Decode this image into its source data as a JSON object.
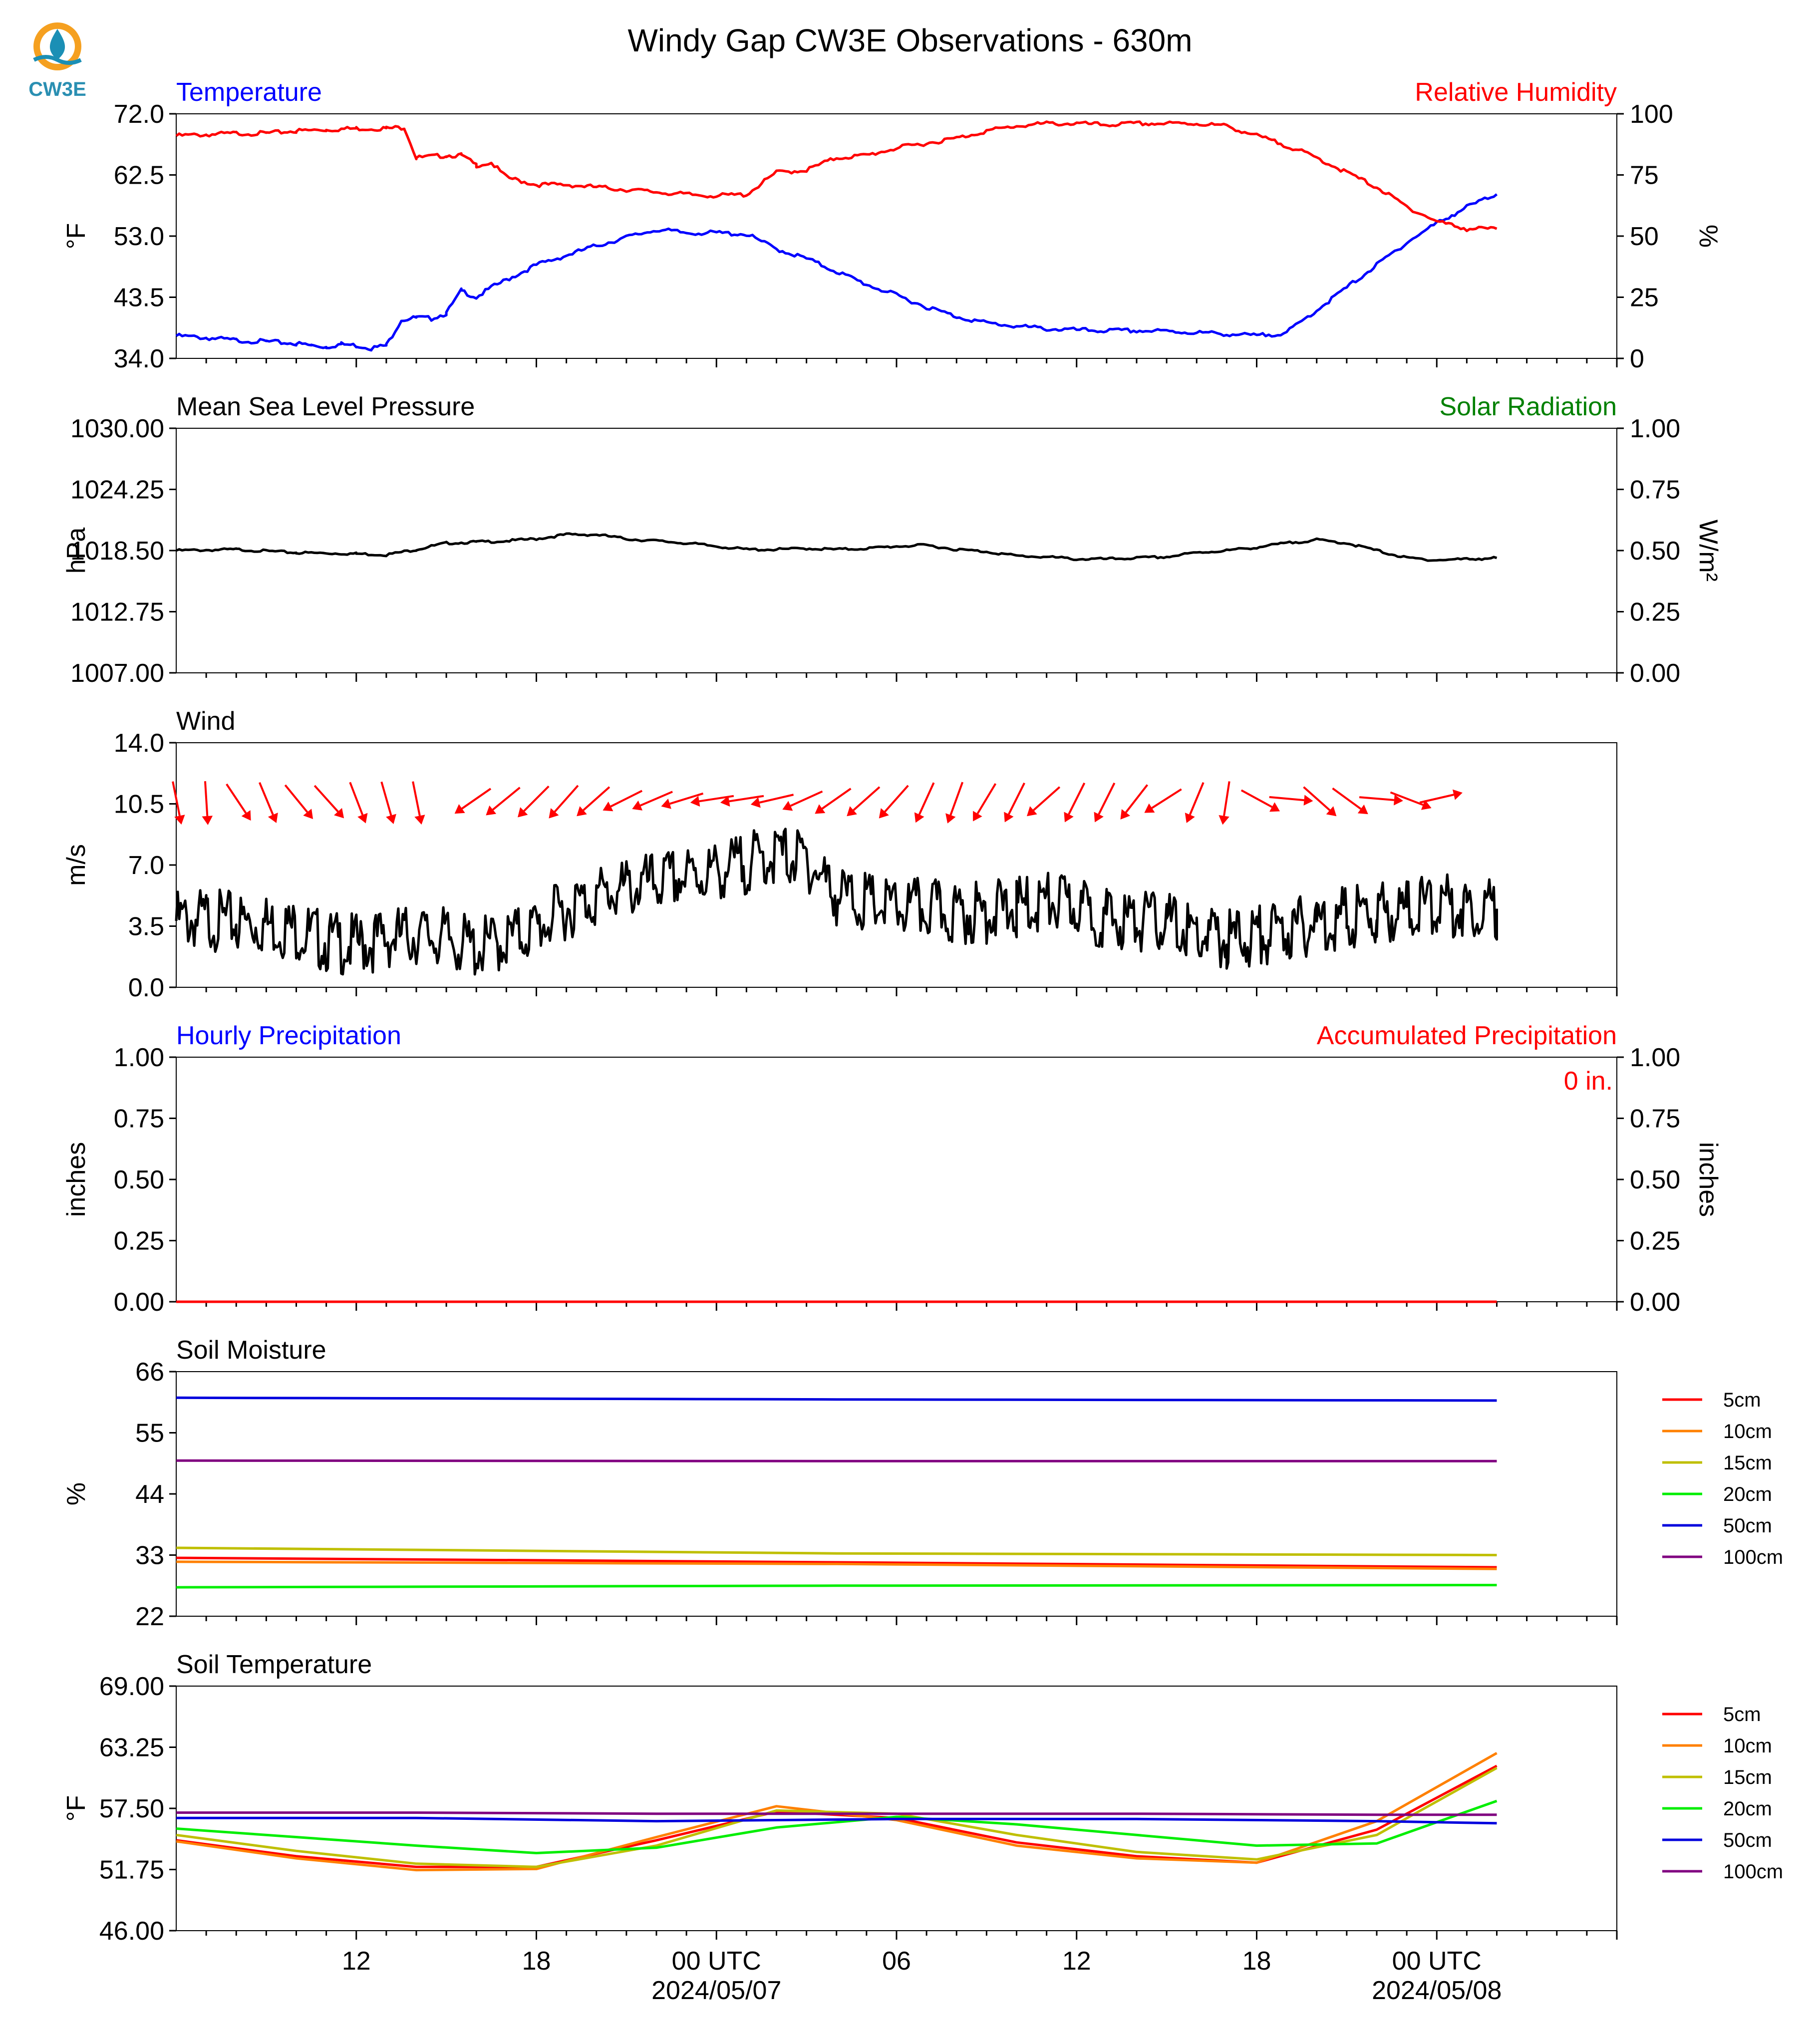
{
  "title": "Windy Gap CW3E Observations - 630m",
  "logo_text": "CW3E",
  "x_axis": {
    "start_hour": 6,
    "end_hour": 54,
    "major_ticks": [
      {
        "hour": 12,
        "label": "12"
      },
      {
        "hour": 18,
        "label": "18"
      },
      {
        "hour": 24,
        "label": "00 UTC"
      },
      {
        "hour": 30,
        "label": "06"
      },
      {
        "hour": 36,
        "label": "12"
      },
      {
        "hour": 42,
        "label": "18"
      },
      {
        "hour": 48,
        "label": "00 UTC"
      }
    ],
    "date_labels": [
      {
        "hour": 24,
        "label": "2024/05/07"
      },
      {
        "hour": 48,
        "label": "2024/05/08"
      }
    ]
  },
  "colors": {
    "temperature": "#0000ff",
    "humidity": "#ff0000",
    "pressure": "#000000",
    "solar": "#008000",
    "wind": "#000000",
    "wind_barbs": "#ff0000",
    "hourly_precip": "#0000ff",
    "accum_precip": "#ff0000"
  },
  "chart_data": [
    {
      "type": "line",
      "panel": "temperature_humidity",
      "title_left": "Temperature",
      "title_right": "Relative Humidity",
      "ylabel_left": "°F",
      "ylabel_right": "%",
      "ylim_left": [
        34.0,
        72.0
      ],
      "ylim_right": [
        0,
        100
      ],
      "yticks_left": [
        "34.0",
        "43.5",
        "53.0",
        "62.5",
        "72.0"
      ],
      "yticks_right": [
        "0",
        "25",
        "50",
        "75",
        "100"
      ],
      "series": [
        {
          "name": "Temperature",
          "axis": "left",
          "color": "#0000ff",
          "x": [
            6,
            7,
            8,
            9,
            10,
            10.5,
            11,
            11.5,
            12,
            12.5,
            13,
            13.5,
            14,
            14.5,
            15,
            15.5,
            16,
            16.5,
            17,
            18,
            19,
            20,
            21,
            22,
            23,
            24,
            25,
            26,
            27,
            28,
            29,
            30,
            31,
            32,
            33,
            34,
            35,
            36,
            37,
            38,
            39,
            40,
            41,
            42,
            43,
            44,
            45,
            46,
            47,
            48,
            49,
            50
          ],
          "y": [
            37.5,
            37.2,
            36.8,
            36.6,
            36.3,
            36.0,
            35.8,
            36.2,
            36.0,
            35.6,
            36.0,
            40.0,
            40.3,
            40.2,
            41.0,
            44.5,
            43.5,
            45.0,
            46.2,
            48.5,
            50.0,
            51.5,
            52.8,
            54.0,
            53.5,
            53.5,
            53.3,
            51.0,
            49.5,
            47.5,
            45.5,
            43.8,
            42.0,
            40.5,
            39.5,
            39.0,
            38.6,
            38.4,
            38.3,
            38.3,
            38.2,
            38.0,
            37.8,
            37.5,
            38.0,
            41.5,
            45.0,
            48.5,
            52.0,
            55.0,
            57.5,
            59.5
          ]
        },
        {
          "name": "Relative Humidity",
          "axis": "right",
          "color": "#ff0000",
          "x": [
            6,
            7,
            8,
            9,
            10,
            11,
            12,
            13,
            13.6,
            14,
            15,
            15.5,
            16,
            16.5,
            17,
            18,
            19,
            20,
            21,
            22,
            23,
            24,
            25,
            26,
            27,
            28,
            29,
            30,
            31,
            32,
            33,
            34,
            35,
            36,
            37,
            38,
            39,
            40,
            41,
            42,
            43,
            44,
            45,
            46,
            47,
            48,
            49,
            50
          ],
          "y": [
            91,
            91.5,
            92,
            92,
            93,
            93.5,
            94,
            94,
            94.5,
            82,
            83,
            83,
            79,
            80,
            74,
            71,
            71,
            70,
            69,
            68,
            67,
            66.5,
            67,
            76,
            77,
            82,
            83,
            86,
            88,
            90,
            93,
            95,
            96,
            96,
            95.5,
            96,
            96,
            96,
            95,
            91,
            87,
            82,
            76,
            70,
            62,
            56,
            53,
            53
          ]
        }
      ]
    },
    {
      "type": "line",
      "panel": "pressure_solar",
      "title_left": "Mean Sea Level Pressure",
      "title_right": "Solar Radiation",
      "ylabel_left": "hPa",
      "ylabel_right": "W/m²",
      "ylim_left": [
        1007.0,
        1030.0
      ],
      "ylim_right": [
        0.0,
        1.0
      ],
      "yticks_left": [
        "1007.00",
        "1012.75",
        "1018.50",
        "1024.25",
        "1030.00"
      ],
      "yticks_right": [
        "0.00",
        "0.25",
        "0.50",
        "0.75",
        "1.00"
      ],
      "series": [
        {
          "name": "Mean Sea Level Pressure",
          "axis": "left",
          "color": "#000000",
          "x": [
            6,
            8,
            10,
            12,
            13,
            14,
            15,
            16,
            17,
            18,
            19,
            20,
            21,
            22,
            23,
            24,
            25,
            26,
            27,
            28,
            29,
            30,
            31,
            32,
            33,
            34,
            35,
            36,
            37,
            38,
            39,
            40,
            41,
            42,
            43,
            44,
            45,
            46,
            47,
            48,
            49,
            50
          ],
          "y": [
            1018.5,
            1018.6,
            1018.3,
            1018.2,
            1018.1,
            1018.6,
            1019.2,
            1019.3,
            1019.4,
            1019.6,
            1020.0,
            1020.0,
            1019.6,
            1019.4,
            1019.2,
            1018.9,
            1018.6,
            1018.6,
            1018.7,
            1018.6,
            1018.7,
            1018.9,
            1019.0,
            1018.6,
            1018.4,
            1018.0,
            1017.9,
            1017.7,
            1017.7,
            1017.8,
            1017.9,
            1018.3,
            1018.5,
            1018.8,
            1019.2,
            1019.5,
            1019.2,
            1018.5,
            1017.8,
            1017.6,
            1017.7,
            1017.8
          ]
        }
      ]
    },
    {
      "type": "line",
      "panel": "wind",
      "title_left": "Wind",
      "ylabel_left": "m/s",
      "ylim_left": [
        0.0,
        14.0
      ],
      "yticks_left": [
        "0.0",
        "3.5",
        "7.0",
        "10.5",
        "14.0"
      ],
      "series": [
        {
          "name": "Wind speed",
          "axis": "left",
          "color": "#000000",
          "x": [
            6,
            7,
            8,
            9,
            10,
            11,
            12,
            13,
            14,
            15,
            16,
            17,
            18,
            19,
            20,
            21,
            22,
            23,
            24,
            25,
            26,
            27,
            28,
            29,
            30,
            31,
            32,
            33,
            34,
            35,
            36,
            37,
            38,
            39,
            40,
            41,
            42,
            43,
            44,
            45,
            46,
            47,
            48,
            49,
            50
          ],
          "y": [
            3.8,
            3.9,
            3.7,
            3.6,
            3.3,
            2.6,
            2.4,
            2.8,
            3.0,
            2.8,
            2.2,
            2.7,
            3.4,
            4.5,
            5.2,
            5.6,
            6.0,
            6.3,
            6.6,
            7.1,
            7.6,
            7.3,
            5.3,
            4.8,
            4.5,
            4.5,
            4.2,
            4.3,
            4.5,
            4.9,
            4.6,
            3.9,
            3.8,
            3.7,
            3.0,
            2.7,
            3.0,
            3.2,
            3.7,
            4.0,
            4.2,
            4.5,
            4.7,
            4.6,
            4.5
          ]
        },
        {
          "name": "Wind direction",
          "axis": "left",
          "color": "#ff0000",
          "x": [
            6,
            7,
            8,
            9,
            10,
            11,
            12,
            13,
            14,
            16,
            17,
            18,
            19,
            20,
            21,
            22,
            23,
            24,
            25,
            26,
            27,
            28,
            29,
            30,
            31,
            32,
            33,
            34,
            35,
            36,
            37,
            38,
            39,
            40,
            41,
            42,
            43,
            44,
            45,
            46,
            47,
            48
          ],
          "dx": [
            0.3,
            0.1,
            0.8,
            0.5,
            0.9,
            0.9,
            0.5,
            0.4,
            0.3,
            -1.3,
            -1.1,
            -0.9,
            -0.8,
            -0.9,
            -1.2,
            -1.4,
            -1.3,
            -1.3,
            -1.3,
            -1.3,
            -1.1,
            -1.0,
            -0.9,
            -0.8,
            -0.5,
            -0.4,
            -0.6,
            -0.5,
            -0.9,
            -0.5,
            -0.5,
            -0.7,
            -1.1,
            -0.5,
            -0.2,
            1.1,
            1.1,
            0.9,
            1.1,
            1.2,
            1.3,
            1.3
          ],
          "dy": [
            -1.5,
            -1.6,
            -1.2,
            -1.2,
            -1.1,
            -1.0,
            -1.3,
            -1.4,
            -1.5,
            -0.9,
            -0.9,
            -0.9,
            -0.9,
            -0.8,
            -0.6,
            -0.6,
            -0.4,
            -0.2,
            -0.2,
            -0.3,
            -0.5,
            -0.7,
            -0.8,
            -0.9,
            -1.1,
            -1.1,
            -1.0,
            -1.0,
            -0.8,
            -1.0,
            -1.0,
            -0.9,
            -0.7,
            -1.2,
            -1.3,
            -0.6,
            -0.1,
            -0.8,
            -0.8,
            -0.1,
            -0.5,
            0.3
          ]
        }
      ]
    },
    {
      "type": "line",
      "panel": "precipitation",
      "title_left": "Hourly Precipitation",
      "title_right": "Accumulated Precipitation",
      "annotation": "0 in.",
      "ylabel_left": "inches",
      "ylabel_right": "inches",
      "ylim_left": [
        0.0,
        1.0
      ],
      "ylim_right": [
        0.0,
        1.0
      ],
      "yticks_left": [
        "0.00",
        "0.25",
        "0.50",
        "0.75",
        "1.00"
      ],
      "yticks_right": [
        "0.00",
        "0.25",
        "0.50",
        "0.75",
        "1.00"
      ],
      "series": [
        {
          "name": "Hourly Precipitation",
          "axis": "left",
          "color": "#0000ff",
          "x": [
            6,
            50
          ],
          "y": [
            0,
            0
          ]
        },
        {
          "name": "Accumulated Precipitation",
          "axis": "right",
          "color": "#ff0000",
          "x": [
            6,
            50
          ],
          "y": [
            0,
            0
          ]
        }
      ]
    },
    {
      "type": "line",
      "panel": "soil_moisture",
      "title_left": "Soil Moisture",
      "ylabel_left": "%",
      "ylim_left": [
        22,
        66
      ],
      "yticks_left": [
        "22",
        "33",
        "44",
        "55",
        "66"
      ],
      "legend_position": "right",
      "series": [
        {
          "name": "5cm",
          "color": "#ff0000",
          "x": [
            6,
            28,
            50
          ],
          "y": [
            32.5,
            31.7,
            30.8
          ]
        },
        {
          "name": "10cm",
          "color": "#ff8000",
          "x": [
            6,
            28,
            50
          ],
          "y": [
            31.8,
            31.4,
            30.5
          ]
        },
        {
          "name": "15cm",
          "color": "#bfbf00",
          "x": [
            6,
            28,
            50
          ],
          "y": [
            34.3,
            33.3,
            33.0
          ]
        },
        {
          "name": "20cm",
          "color": "#00ee00",
          "x": [
            6,
            28,
            50
          ],
          "y": [
            27.2,
            27.5,
            27.6
          ]
        },
        {
          "name": "50cm",
          "color": "#0000dd",
          "x": [
            6,
            28,
            50
          ],
          "y": [
            61.3,
            61.0,
            60.8
          ]
        },
        {
          "name": "100cm",
          "color": "#800080",
          "x": [
            6,
            28,
            50
          ],
          "y": [
            50.0,
            49.9,
            49.9
          ]
        }
      ]
    },
    {
      "type": "line",
      "panel": "soil_temperature",
      "title_left": "Soil Temperature",
      "ylabel_left": "°F",
      "ylim_left": [
        46.0,
        69.0
      ],
      "yticks_left": [
        "46.00",
        "51.75",
        "57.50",
        "63.25",
        "69.00"
      ],
      "legend_position": "right",
      "series": [
        {
          "name": "5cm",
          "color": "#ff0000",
          "x": [
            6,
            10,
            14,
            18,
            22,
            26,
            30,
            34,
            38,
            42,
            46,
            50
          ],
          "y": [
            54.5,
            53.0,
            52.0,
            52.0,
            54.5,
            57.2,
            56.6,
            54.3,
            53.0,
            52.4,
            55.5,
            61.5
          ]
        },
        {
          "name": "10cm",
          "color": "#ff8000",
          "x": [
            6,
            10,
            14,
            18,
            22,
            26,
            30,
            34,
            38,
            42,
            46,
            50
          ],
          "y": [
            54.4,
            52.8,
            51.7,
            51.8,
            54.8,
            57.7,
            56.4,
            54.0,
            52.8,
            52.4,
            56.3,
            62.7
          ]
        },
        {
          "name": "15cm",
          "color": "#bfbf00",
          "x": [
            6,
            10,
            14,
            18,
            22,
            26,
            30,
            34,
            38,
            42,
            46,
            50
          ],
          "y": [
            55.0,
            53.5,
            52.3,
            52.0,
            54.0,
            57.3,
            57.0,
            55.0,
            53.4,
            52.7,
            55.0,
            61.3
          ]
        },
        {
          "name": "20cm",
          "color": "#00ee00",
          "x": [
            6,
            10,
            14,
            18,
            22,
            26,
            30,
            34,
            38,
            42,
            46,
            50
          ],
          "y": [
            55.6,
            54.8,
            54.0,
            53.3,
            53.8,
            55.7,
            56.7,
            56.0,
            55.0,
            54.0,
            54.2,
            58.2
          ]
        },
        {
          "name": "50cm",
          "color": "#0000dd",
          "x": [
            6,
            14,
            22,
            30,
            38,
            46,
            50
          ],
          "y": [
            56.6,
            56.6,
            56.3,
            56.5,
            56.5,
            56.3,
            56.1
          ]
        },
        {
          "name": "100cm",
          "color": "#800080",
          "x": [
            6,
            14,
            22,
            30,
            38,
            46,
            50
          ],
          "y": [
            57.1,
            57.1,
            57.0,
            57.0,
            57.0,
            56.9,
            56.9
          ]
        }
      ]
    }
  ]
}
